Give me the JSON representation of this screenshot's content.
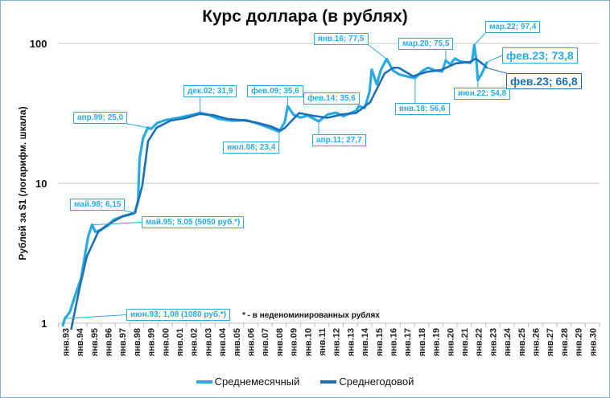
{
  "colors": {
    "monthly": "#29aae1",
    "annual": "#1f6fb5",
    "grid": "#d9d9d9"
  },
  "chart_data": {
    "type": "line",
    "title": "Курс доллара (в рублях)",
    "ylabel": "Рублей за $1 (логарифм. шкала)",
    "xlabel": "",
    "yscale": "log",
    "ylim": [
      1,
      100
    ],
    "yticks": [
      "1",
      "10",
      "100"
    ],
    "xticks": [
      "янв.93",
      "янв.94",
      "янв.95",
      "янв.96",
      "янв.97",
      "янв.98",
      "янв.99",
      "янв.00",
      "янв.01",
      "янв.02",
      "янв.03",
      "янв.04",
      "янв.05",
      "янв.06",
      "янв.07",
      "янв.08",
      "янв.09",
      "янв.10",
      "янв.11",
      "янв.12",
      "янв.13",
      "янв.14",
      "янв.15",
      "янв.16",
      "янв.17",
      "янв.18",
      "янв.19",
      "янв.20",
      "янв.21",
      "янв.22",
      "янв.23",
      "янв.24",
      "янв.25",
      "янв.26",
      "янв.27",
      "янв.28",
      "янв.29",
      "янв.30"
    ],
    "grid": true,
    "legend_position": "bottom",
    "series": [
      {
        "name": "Среднемесячный",
        "points": [
          [
            1993.3,
            0.95
          ],
          [
            1993.45,
            1.08
          ],
          [
            1993.8,
            1.2
          ],
          [
            1994.2,
            1.6
          ],
          [
            1994.6,
            2.1
          ],
          [
            1994.9,
            3.2
          ],
          [
            1995.1,
            4.2
          ],
          [
            1995.37,
            5.05
          ],
          [
            1995.6,
            4.5
          ],
          [
            1995.9,
            4.6
          ],
          [
            1996.5,
            5.0
          ],
          [
            1996.9,
            5.5
          ],
          [
            1997.5,
            5.8
          ],
          [
            1997.95,
            5.95
          ],
          [
            1998.37,
            6.15
          ],
          [
            1998.6,
            7.5
          ],
          [
            1998.7,
            15
          ],
          [
            1998.95,
            21
          ],
          [
            1999.28,
            25.0
          ],
          [
            1999.5,
            24.5
          ],
          [
            1999.95,
            27
          ],
          [
            2000.5,
            28.3
          ],
          [
            2001.5,
            29.5
          ],
          [
            2002.5,
            31
          ],
          [
            2002.95,
            31.9
          ],
          [
            2003.5,
            31
          ],
          [
            2004.2,
            29
          ],
          [
            2005.2,
            28
          ],
          [
            2006.2,
            28.3
          ],
          [
            2007.2,
            26.3
          ],
          [
            2008.0,
            24.5
          ],
          [
            2008.5,
            23.4
          ],
          [
            2008.9,
            27.5
          ],
          [
            2009.1,
            35.6
          ],
          [
            2009.5,
            31
          ],
          [
            2010.0,
            29.5
          ],
          [
            2010.5,
            30.5
          ],
          [
            2011.28,
            27.7
          ],
          [
            2011.9,
            31
          ],
          [
            2012.5,
            32
          ],
          [
            2013.0,
            30.2
          ],
          [
            2013.9,
            33
          ],
          [
            2014.1,
            35.6
          ],
          [
            2014.5,
            34.5
          ],
          [
            2014.85,
            45
          ],
          [
            2015.0,
            65
          ],
          [
            2015.35,
            51
          ],
          [
            2015.65,
            65
          ],
          [
            2016.05,
            77.5
          ],
          [
            2016.5,
            64
          ],
          [
            2016.95,
            60
          ],
          [
            2017.5,
            58
          ],
          [
            2018.05,
            56.6
          ],
          [
            2018.5,
            63
          ],
          [
            2018.95,
            67
          ],
          [
            2019.5,
            64
          ],
          [
            2019.95,
            63
          ],
          [
            2020.2,
            75.5
          ],
          [
            2020.5,
            71
          ],
          [
            2020.85,
            78
          ],
          [
            2021.2,
            74.5
          ],
          [
            2021.9,
            72.5
          ],
          [
            2022.05,
            75
          ],
          [
            2022.2,
            97.4
          ],
          [
            2022.35,
            75
          ],
          [
            2022.45,
            54.8
          ],
          [
            2022.7,
            60
          ],
          [
            2022.95,
            68
          ],
          [
            2023.1,
            73.8
          ]
        ]
      },
      {
        "name": "Среднегодовой",
        "points": [
          [
            1993.9,
            0.9
          ],
          [
            1994.5,
            1.8
          ],
          [
            1995.0,
            3.0
          ],
          [
            1995.8,
            4.5
          ],
          [
            1996.5,
            5.1
          ],
          [
            1997.5,
            5.8
          ],
          [
            1998.4,
            6.2
          ],
          [
            1998.9,
            9.7
          ],
          [
            1999.3,
            20
          ],
          [
            1999.9,
            25
          ],
          [
            2000.9,
            28.1
          ],
          [
            2001.9,
            29.2
          ],
          [
            2002.9,
            31.3
          ],
          [
            2003.9,
            30.7
          ],
          [
            2004.9,
            28.8
          ],
          [
            2005.9,
            28.3
          ],
          [
            2006.9,
            27.2
          ],
          [
            2007.9,
            25.6
          ],
          [
            2008.6,
            23.8
          ],
          [
            2008.9,
            24.9
          ],
          [
            2009.9,
            31.8
          ],
          [
            2010.9,
            30.4
          ],
          [
            2011.9,
            29.4
          ],
          [
            2012.9,
            31.1
          ],
          [
            2013.9,
            31.8
          ],
          [
            2014.9,
            38
          ],
          [
            2015.9,
            61
          ],
          [
            2016.5,
            67
          ],
          [
            2016.9,
            67
          ],
          [
            2017.9,
            58.3
          ],
          [
            2018.9,
            62.7
          ],
          [
            2019.9,
            64.7
          ],
          [
            2020.9,
            72
          ],
          [
            2021.9,
            73.7
          ],
          [
            2022.3,
            78
          ],
          [
            2022.9,
            70
          ],
          [
            2023.1,
            66.8
          ]
        ]
      }
    ],
    "annotations": [
      "июн.93; 1,08 (1080 руб.*)",
      "май.95; 5,05 (5050 руб.*)",
      "май.98; 6,15",
      "апр.99; 25,0",
      "дек.02; 31,9",
      "июл.08; 23,4",
      "фев.09; 35,6",
      "апр.11; 27,7",
      "фев.14; 35,6",
      "янв.16; 77,5",
      "янв.18; 56,6",
      "мар.20; 75,5",
      "мар.22; 97,4",
      "июн.22; 54,8",
      "фев.23; 73,8",
      "фев.23; 66,8"
    ],
    "note": "* - в неденоминированных рублях"
  }
}
